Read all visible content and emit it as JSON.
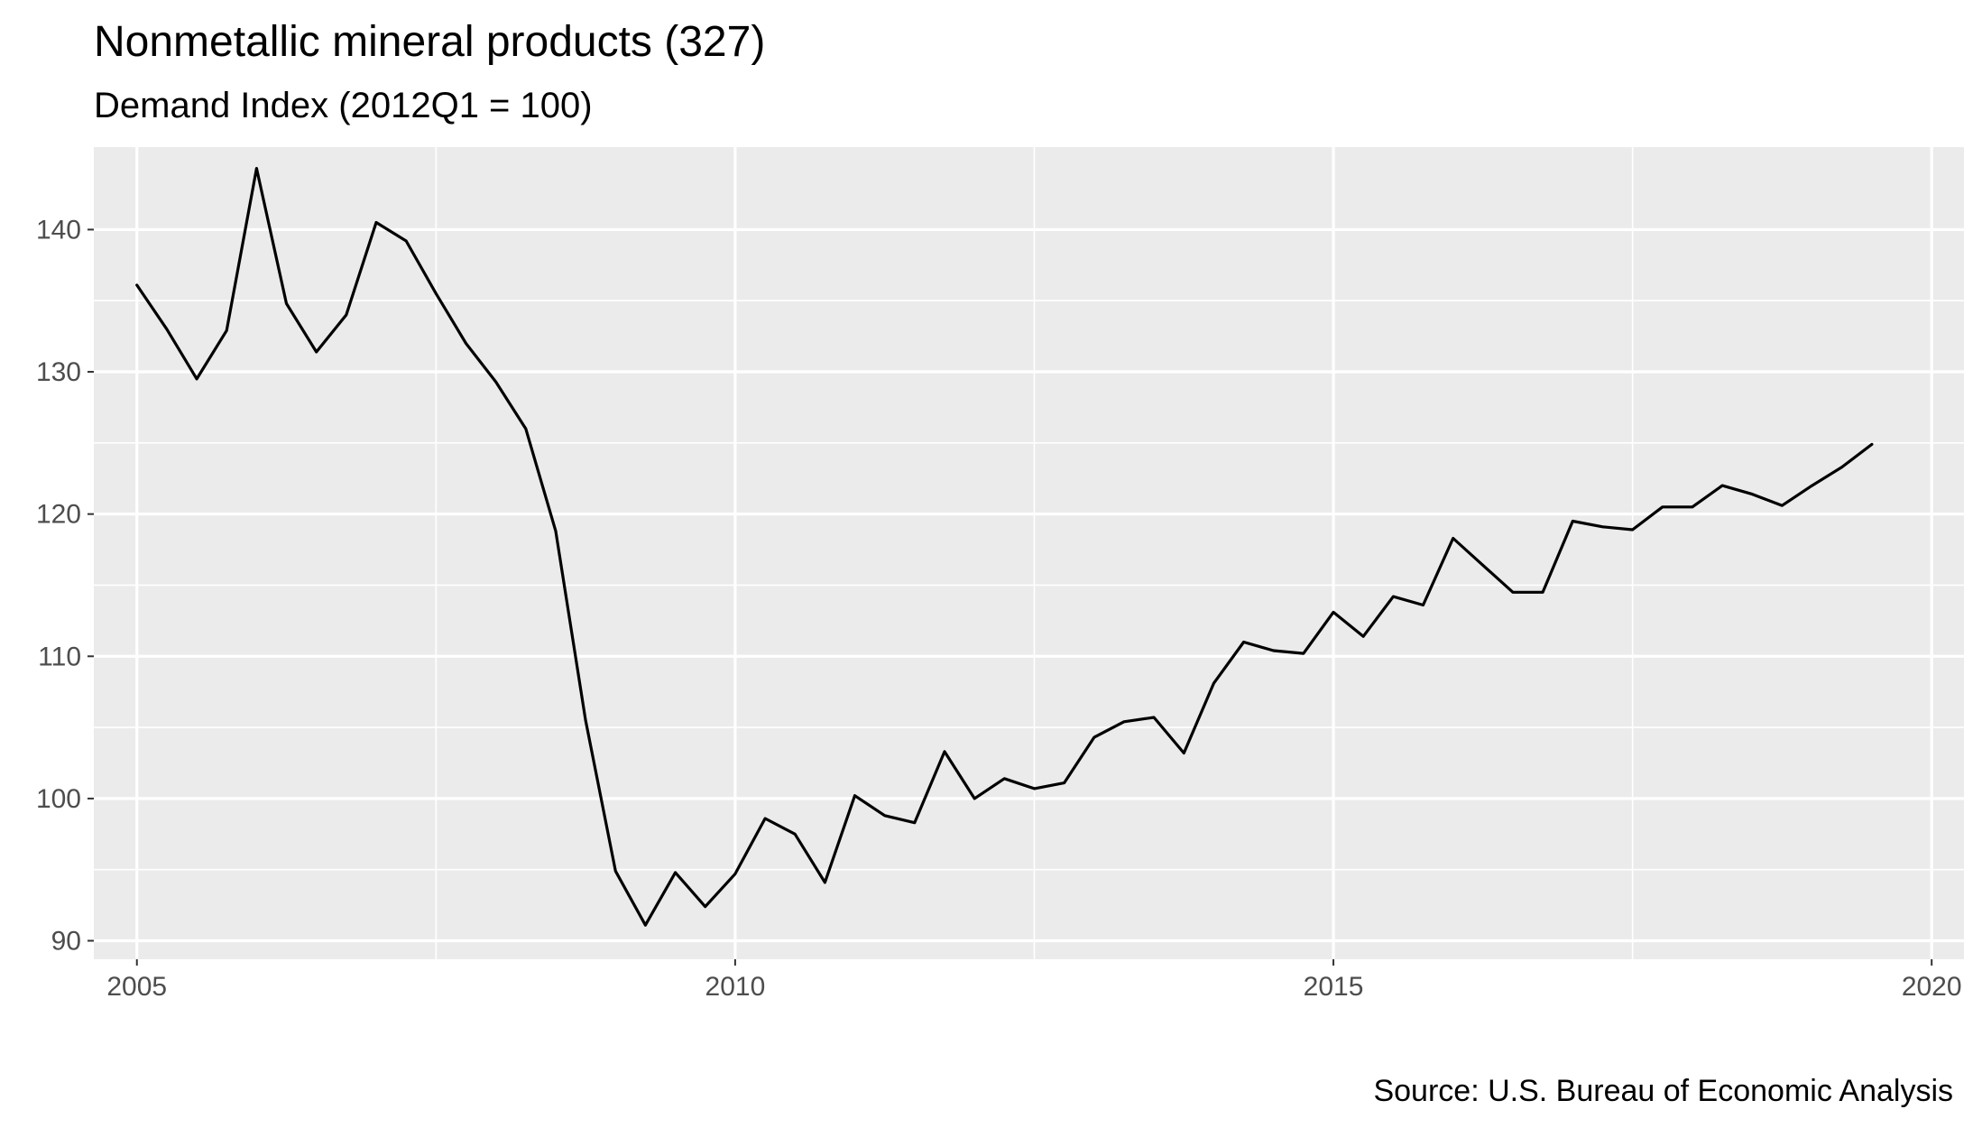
{
  "chart_data": {
    "type": "line",
    "title": "Nonmetallic mineral products (327)",
    "subtitle": "Demand Index (2012Q1 = 100)",
    "caption": "Source: U.S. Bureau of Economic Analysis",
    "xlabel": "",
    "ylabel": "",
    "xlim": [
      2004.64,
      2020.27
    ],
    "ylim": [
      88.7,
      145.8
    ],
    "x_ticks": [
      2005,
      2010,
      2015,
      2020
    ],
    "x_tick_labels": [
      "2005",
      "2010",
      "2015",
      "2020"
    ],
    "y_ticks": [
      90,
      100,
      110,
      120,
      130,
      140
    ],
    "y_tick_labels": [
      "90",
      "100",
      "110",
      "120",
      "130",
      "140"
    ],
    "grid": true,
    "line_color": "#000000",
    "panel_background": "#ebebeb",
    "series": [
      {
        "x": [
          2005.0,
          2005.25,
          2005.5,
          2005.75,
          2006.0,
          2006.25,
          2006.5,
          2006.75,
          2007.0,
          2007.25,
          2007.5,
          2007.75,
          2008.0,
          2008.25,
          2008.5,
          2008.75,
          2009.0,
          2009.25,
          2009.5,
          2009.75,
          2010.0,
          2010.25,
          2010.5,
          2010.75,
          2011.0,
          2011.25,
          2011.5,
          2011.75,
          2012.0,
          2012.25,
          2012.5,
          2012.75,
          2013.0,
          2013.25,
          2013.5,
          2013.75,
          2014.0,
          2014.25,
          2014.5,
          2014.75,
          2015.0,
          2015.25,
          2015.5,
          2015.75,
          2016.0,
          2016.25,
          2016.5,
          2016.75,
          2017.0,
          2017.25,
          2017.5,
          2017.75,
          2018.0,
          2018.25,
          2018.5,
          2018.75,
          2019.0,
          2019.25,
          2019.5
        ],
        "values": [
          136.1,
          133.0,
          129.5,
          132.9,
          144.3,
          134.8,
          131.4,
          134.0,
          140.5,
          139.2,
          135.5,
          132.0,
          129.3,
          126.0,
          118.8,
          105.5,
          94.9,
          91.1,
          94.8,
          92.4,
          94.7,
          98.6,
          97.5,
          94.1,
          100.2,
          98.8,
          98.3,
          103.3,
          100.0,
          101.4,
          100.7,
          101.1,
          104.3,
          105.4,
          105.7,
          103.2,
          108.1,
          111.0,
          110.4,
          110.2,
          113.1,
          111.4,
          114.2,
          113.6,
          118.3,
          116.4,
          114.5,
          114.5,
          119.5,
          119.1,
          118.9,
          120.5,
          120.5,
          122.0,
          121.4,
          120.6,
          122.0,
          123.3,
          124.9
        ]
      }
    ]
  }
}
